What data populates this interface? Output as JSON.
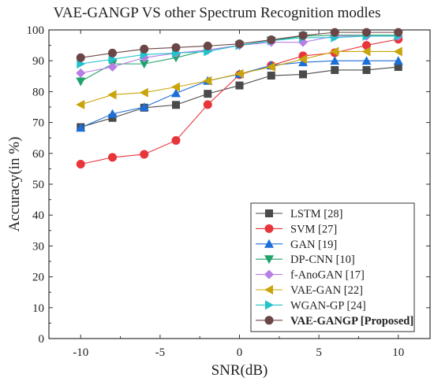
{
  "chart_data": {
    "type": "line",
    "title": "VAE-GANGP VS other Spectrum Recognition modles",
    "xlabel": "SNR(dB)",
    "ylabel": "Accuracy(in %)",
    "xlim": [
      -12,
      12
    ],
    "ylim": [
      0,
      100
    ],
    "xticks": [
      -10,
      -5,
      0,
      5,
      10
    ],
    "yticks": [
      0,
      10,
      20,
      30,
      40,
      50,
      60,
      70,
      80,
      90,
      100
    ],
    "x": [
      -10,
      -8,
      -6,
      -4,
      -2,
      0,
      2,
      4,
      6,
      8,
      10
    ],
    "grid": false,
    "legend_position": "bottom-right",
    "series": [
      {
        "name": "LSTM [28]",
        "color": "#4a4a4a",
        "marker": "square",
        "values": [
          68.5,
          71.5,
          74.8,
          75.7,
          79.3,
          82.0,
          85.2,
          85.6,
          87.0,
          87.0,
          88.0
        ]
      },
      {
        "name": "SVM [27]",
        "color": "#e8353a",
        "marker": "circle",
        "values": [
          56.5,
          58.7,
          59.7,
          64.2,
          75.8,
          85.5,
          88.5,
          91.6,
          92.6,
          95.0,
          97.0
        ]
      },
      {
        "name": "GAN [19]",
        "color": "#1c6fd8",
        "marker": "triangle-up",
        "values": [
          68.3,
          72.8,
          75.0,
          79.5,
          83.5,
          85.7,
          88.5,
          89.5,
          90.0,
          90.0,
          90.0
        ]
      },
      {
        "name": "DP-CNN [10]",
        "color": "#1fa36a",
        "marker": "triangle-down",
        "values": [
          83.3,
          89.0,
          89.0,
          91.0,
          93.5,
          95.0,
          96.5,
          98.0,
          98.3,
          98.3,
          98.3
        ]
      },
      {
        "name": "f-AnoGAN [17]",
        "color": "#b77ee6",
        "marker": "diamond",
        "values": [
          86.0,
          88.0,
          91.0,
          92.5,
          93.5,
          95.0,
          96.0,
          96.0,
          98.0,
          98.0,
          98.0
        ]
      },
      {
        "name": "VAE-GAN [22]",
        "color": "#c9a40a",
        "marker": "triangle-left",
        "values": [
          75.8,
          79.0,
          79.7,
          81.5,
          83.5,
          85.8,
          88.0,
          90.5,
          93.0,
          93.0,
          93.0
        ]
      },
      {
        "name": "WGAN-GP [24]",
        "color": "#22c3cc",
        "marker": "triangle-right",
        "values": [
          89.0,
          90.5,
          92.0,
          92.5,
          93.0,
          95.0,
          96.5,
          97.5,
          97.5,
          98.0,
          98.0
        ]
      },
      {
        "name": "VAE-GANGP [Proposed]",
        "color": "#6b4646",
        "marker": "circle",
        "bold": true,
        "values": [
          91.0,
          92.5,
          93.8,
          94.3,
          94.8,
          95.5,
          96.8,
          98.2,
          99.2,
          99.2,
          99.2
        ]
      }
    ]
  }
}
